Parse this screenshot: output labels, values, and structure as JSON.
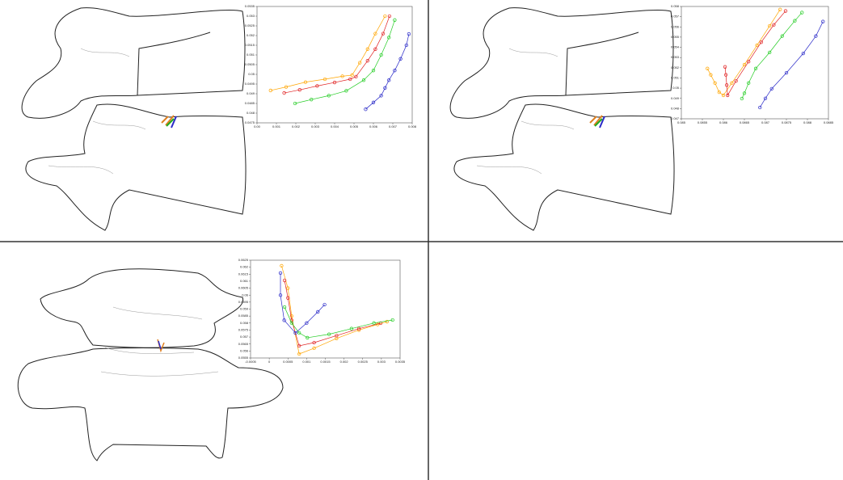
{
  "chart_data": [
    {
      "type": "line",
      "xlim": [
        0,
        0.008
      ],
      "ylim": [
        0.0475,
        0.0535
      ],
      "xticks": [
        {
          "value": 0,
          "label": "0.00"
        },
        0.001,
        0.002,
        0.003,
        0.004,
        0.005,
        0.006,
        0.007,
        0.008
      ],
      "yticks": [
        0.0475,
        0.048,
        0.0485,
        0.049,
        0.0495,
        0.05,
        0.0505,
        0.051,
        0.0515,
        0.052,
        0.0525,
        0.053,
        0.0535
      ],
      "series": [
        {
          "color": "#ffa500",
          "x": [
            0.0007,
            0.0015,
            0.0025,
            0.0035,
            0.0044,
            0.0049,
            0.0053,
            0.0057,
            0.0061,
            0.0066
          ],
          "values": [
            0.04917,
            0.04935,
            0.0496,
            0.04975,
            0.0499,
            0.04996,
            0.0506,
            0.0513,
            0.0521,
            0.053
          ]
        },
        {
          "color": "#e02020",
          "x": [
            0.0014,
            0.0022,
            0.0031,
            0.004,
            0.0048,
            0.0051,
            0.0057,
            0.0061,
            0.0065,
            0.00683
          ],
          "values": [
            0.04904,
            0.0492,
            0.0494,
            0.04958,
            0.04975,
            0.04988,
            0.0507,
            0.0513,
            0.0521,
            0.053
          ]
        },
        {
          "color": "#22cc22",
          "x": [
            0.00196,
            0.0028,
            0.0037,
            0.0046,
            0.0055,
            0.006,
            0.0064,
            0.0068,
            0.0071
          ],
          "values": [
            0.0485,
            0.0487,
            0.0489,
            0.04915,
            0.0497,
            0.0502,
            0.051,
            0.0519,
            0.0528
          ]
        },
        {
          "color": "#2a2ac8",
          "x": [
            0.0056,
            0.006,
            0.0064,
            0.0066,
            0.0068,
            0.0071,
            0.0074,
            0.0077,
            0.00783
          ],
          "values": [
            0.0482,
            0.04855,
            0.0489,
            0.0493,
            0.0497,
            0.0502,
            0.0508,
            0.0515,
            0.05208
          ]
        }
      ]
    },
    {
      "type": "line",
      "xlim": [
        0.085,
        0.0885
      ],
      "ylim": [
        0.047,
        0.058
      ],
      "xticks": [
        0.085,
        0.0855,
        0.086,
        0.0865,
        0.087,
        0.0875,
        0.088,
        0.0885
      ],
      "yticks": [
        0.047,
        0.048,
        0.049,
        0.05,
        0.051,
        0.052,
        0.053,
        0.054,
        0.055,
        0.056,
        0.057,
        0.058
      ],
      "series": [
        {
          "color": "#ffa500",
          "x": [
            0.08562,
            0.0857,
            0.0858,
            0.0859,
            0.086,
            0.0862,
            0.0865,
            0.0868,
            0.0871,
            0.08735
          ],
          "values": [
            0.05192,
            0.0513,
            0.0505,
            0.0496,
            0.0493,
            0.0505,
            0.0523,
            0.0542,
            0.0561,
            0.0577
          ]
        },
        {
          "color": "#e02020",
          "x": [
            0.08604,
            0.08606,
            0.08608,
            0.0861,
            0.0863,
            0.0866,
            0.0869,
            0.0872,
            0.08748
          ],
          "values": [
            0.05208,
            0.0513,
            0.0503,
            0.0493,
            0.0507,
            0.0526,
            0.0545,
            0.0562,
            0.05756
          ]
        },
        {
          "color": "#22cc22",
          "x": [
            0.08644,
            0.0865,
            0.0866,
            0.08677,
            0.0871,
            0.0874,
            0.0877,
            0.08787
          ],
          "values": [
            0.04898,
            0.0495,
            0.0505,
            0.05192,
            0.0535,
            0.0551,
            0.0566,
            0.0574
          ]
        },
        {
          "color": "#2a2ac8",
          "x": [
            0.08687,
            0.087,
            0.08715,
            0.0875,
            0.0879,
            0.0882,
            0.08837
          ],
          "values": [
            0.04811,
            0.049,
            0.04994,
            0.0515,
            0.0534,
            0.0551,
            0.05652
          ]
        }
      ]
    },
    {
      "type": "line",
      "xlim": [
        -0.0005,
        0.0035
      ],
      "ylim": [
        0.0555,
        0.0625
      ],
      "xticks": [
        -0.0005,
        0,
        0.0005,
        0.001,
        0.0015,
        0.002,
        0.0025,
        0.003,
        0.0035
      ],
      "yticks": [
        0.0555,
        0.056,
        0.0565,
        0.057,
        0.0575,
        0.058,
        0.0585,
        0.059,
        0.0595,
        0.06,
        0.0605,
        0.061,
        0.0615,
        0.062,
        0.0625
      ],
      "series": [
        {
          "color": "#ffa500",
          "x": [
            0.00033,
            0.0005,
            0.0006,
            0.0008,
            0.0012,
            0.0018,
            0.0024,
            0.0029,
            0.00315
          ],
          "values": [
            0.0621,
            0.0605,
            0.0585,
            0.05579,
            0.0562,
            0.0569,
            0.0575,
            0.0579,
            0.0581
          ]
        },
        {
          "color": "#e02020",
          "x": [
            0.00041,
            0.0005,
            0.0006,
            0.0008,
            0.0012,
            0.0018,
            0.0024,
            0.00298
          ],
          "values": [
            0.06105,
            0.0598,
            0.0582,
            0.05637,
            0.0566,
            0.0571,
            0.0576,
            0.05799
          ]
        },
        {
          "color": "#22cc22",
          "x": [
            0.00041,
            0.0006,
            0.0008,
            0.00102,
            0.0016,
            0.0022,
            0.0028,
            0.0033
          ],
          "values": [
            0.05914,
            0.058,
            0.0573,
            0.05695,
            0.0572,
            0.0576,
            0.058,
            0.05822
          ]
        },
        {
          "color": "#2a2ac8",
          "x": [
            0.0003,
            0.0003,
            0.0004,
            0.0007,
            0.001,
            0.0013,
            0.00148
          ],
          "values": [
            0.06158,
            0.06,
            0.0582,
            0.05729,
            0.058,
            0.0588,
            0.05932
          ]
        }
      ]
    }
  ]
}
